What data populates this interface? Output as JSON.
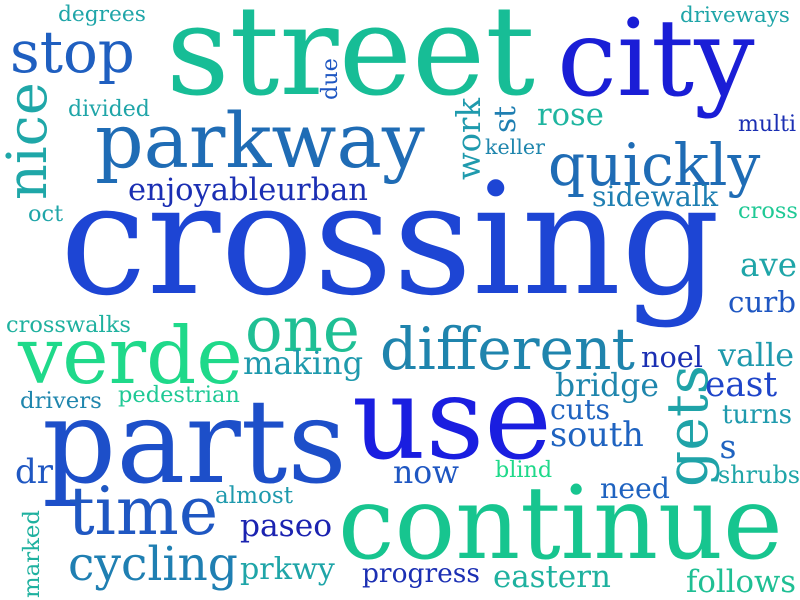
{
  "palette": {
    "deep_blue": "#1f2bd6",
    "royal_blue": "#1546c9",
    "steel_blue": "#1f6fb8",
    "teal": "#1a9fb0",
    "sea_green": "#17b99a",
    "mint_green": "#1ed88e",
    "navy": "#1b1fb0"
  },
  "words": [
    {
      "text": "crossing",
      "color": "#1d45d4"
    },
    {
      "text": "street",
      "color": "#17bd96"
    },
    {
      "text": "city",
      "color": "#1a1ed6"
    },
    {
      "text": "continue",
      "color": "#17c58f"
    },
    {
      "text": "parts",
      "color": "#1d4fc9"
    },
    {
      "text": "use",
      "color": "#1a1ee0"
    },
    {
      "text": "parkway",
      "color": "#1f6cb5"
    },
    {
      "text": "quickly",
      "color": "#1f6cb5"
    },
    {
      "text": "verde",
      "color": "#1fd98a"
    },
    {
      "text": "different",
      "color": "#1f84ad"
    },
    {
      "text": "one",
      "color": "#1fbf94"
    },
    {
      "text": "time",
      "color": "#1f57c2"
    },
    {
      "text": "cycling",
      "color": "#1f7fb2"
    },
    {
      "text": "stop",
      "color": "#1f5fc0"
    },
    {
      "text": "nice",
      "color": "#1fa7a8"
    },
    {
      "text": "gets",
      "color": "#1fa3a8"
    },
    {
      "text": "enjoyableurban",
      "color": "#1b2fb3"
    },
    {
      "text": "making",
      "color": "#1f9aad"
    },
    {
      "text": "bridge",
      "color": "#1f86ad"
    },
    {
      "text": "south",
      "color": "#1f63c0"
    },
    {
      "text": "east",
      "color": "#1f45c9"
    },
    {
      "text": "rose",
      "color": "#1fb5a0"
    },
    {
      "text": "work",
      "color": "#1f9aad"
    },
    {
      "text": "st",
      "color": "#1f7fb2"
    },
    {
      "text": "keller",
      "color": "#1f86ad"
    },
    {
      "text": "sidewalk",
      "color": "#1f7fb2"
    },
    {
      "text": "paseo",
      "color": "#1b23b0"
    },
    {
      "text": "prkwy",
      "color": "#1fa5a8"
    },
    {
      "text": "progress",
      "color": "#1b2fb3"
    },
    {
      "text": "eastern",
      "color": "#1fb19f"
    },
    {
      "text": "follows",
      "color": "#1fbf94"
    },
    {
      "text": "now",
      "color": "#1f57c2"
    },
    {
      "text": "need",
      "color": "#1f63c0"
    },
    {
      "text": "shrubs",
      "color": "#1fa5a8"
    },
    {
      "text": "pedestrian",
      "color": "#1fc995"
    },
    {
      "text": "crosswalks",
      "color": "#1fb19f"
    },
    {
      "text": "drivers",
      "color": "#1f86ad"
    },
    {
      "text": "dr",
      "color": "#1f57c2"
    },
    {
      "text": "almost",
      "color": "#1f9aad"
    },
    {
      "text": "marked",
      "color": "#1fb19f"
    },
    {
      "text": "blind",
      "color": "#1fd98a"
    },
    {
      "text": "cuts",
      "color": "#1f63c0"
    },
    {
      "text": "s",
      "color": "#1f63c0"
    },
    {
      "text": "turns",
      "color": "#1f9aad"
    },
    {
      "text": "noel",
      "color": "#1b2fb3"
    },
    {
      "text": "valle",
      "color": "#1f9aad"
    },
    {
      "text": "curb",
      "color": "#1f57c2"
    },
    {
      "text": "ave",
      "color": "#1fa5a8"
    },
    {
      "text": "cross",
      "color": "#1fc995"
    },
    {
      "text": "multi",
      "color": "#1b2fb3"
    },
    {
      "text": "driveways",
      "color": "#1fa5a8"
    },
    {
      "text": "degrees",
      "color": "#1fa5a8"
    },
    {
      "text": "divided",
      "color": "#1fa5a8"
    },
    {
      "text": "due",
      "color": "#1f57c2"
    },
    {
      "text": "oct",
      "color": "#1fa5a8"
    }
  ]
}
